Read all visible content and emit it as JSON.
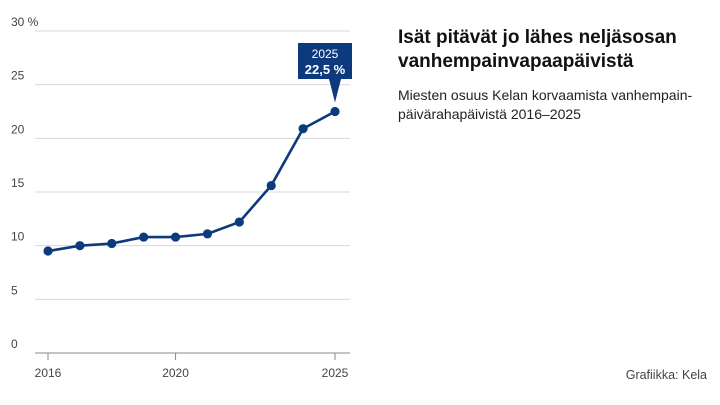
{
  "title": "Isät pitävät jo lähes neljäsosan vanhempainvapaapäivistä",
  "subtitle": "Miesten osuus Kelan korvaamista vanhempain-päivärahapäivistä 2016–2025",
  "source": "Grafiikka: Kela",
  "colors": {
    "line": "#0d3a7d",
    "grid": "#d9d9d9",
    "callout": "#0d3a7d"
  },
  "chart_data": {
    "type": "line",
    "x": [
      2016,
      2017,
      2018,
      2019,
      2020,
      2021,
      2022,
      2023,
      2024,
      2025
    ],
    "series": [
      {
        "values": [
          9.5,
          10.0,
          10.2,
          10.8,
          10.8,
          11.1,
          12.2,
          15.6,
          20.9,
          22.5
        ]
      }
    ],
    "ylim": [
      0,
      30
    ],
    "yticks": [
      0,
      5,
      10,
      15,
      20,
      25,
      30
    ],
    "ytick_labels": [
      "0",
      "5",
      "10",
      "15",
      "20",
      "25",
      "30 %"
    ],
    "xticks": [
      2016,
      2020,
      2025
    ],
    "xtick_labels": [
      "2016",
      "2020",
      "2025"
    ],
    "grid": true,
    "annotation": {
      "x": 2025,
      "year_label": "2025",
      "value_label": "22,5 %"
    }
  }
}
